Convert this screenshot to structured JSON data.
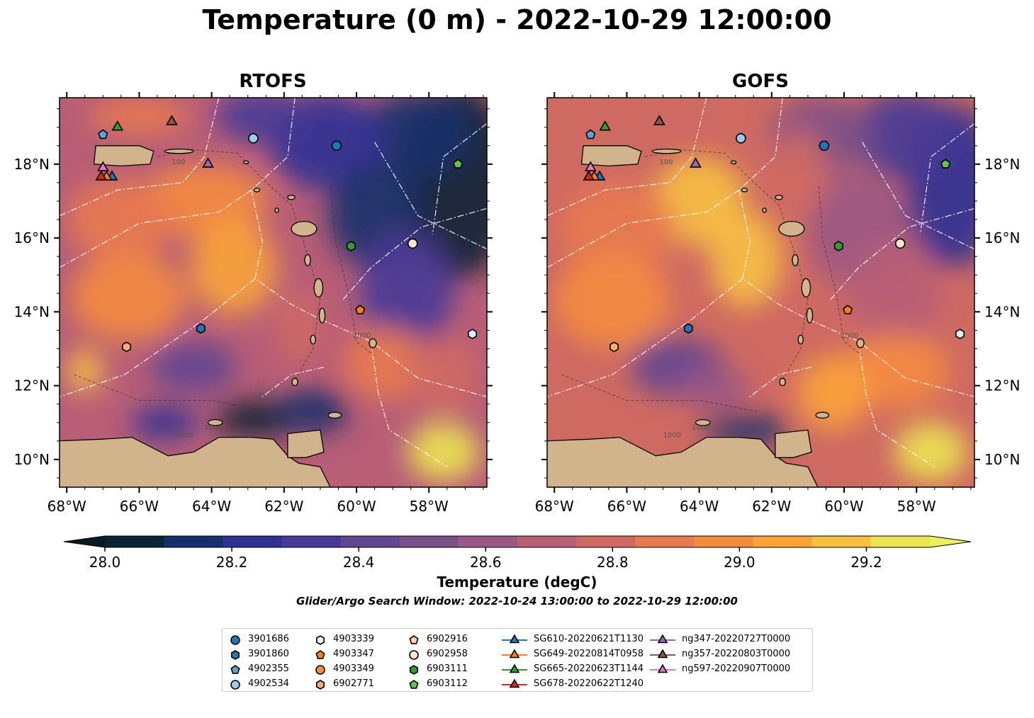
{
  "title": "Temperature (0 m) - 2022-10-29 12:00:00",
  "panels": [
    {
      "title": "RTOFS"
    },
    {
      "title": "GOFS"
    }
  ],
  "map_extent": {
    "lon": [
      -68.2,
      -56.4
    ],
    "lat": [
      9.25,
      19.8
    ]
  },
  "lon_ticks": [
    {
      "value": -68,
      "label": "68°W"
    },
    {
      "value": -66,
      "label": "66°W"
    },
    {
      "value": -64,
      "label": "64°W"
    },
    {
      "value": -62,
      "label": "62°W"
    },
    {
      "value": -60,
      "label": "60°W"
    },
    {
      "value": -58,
      "label": "58°W"
    }
  ],
  "lat_ticks": [
    {
      "value": 10,
      "label": "10°N"
    },
    {
      "value": 12,
      "label": "12°N"
    },
    {
      "value": 14,
      "label": "14°N"
    },
    {
      "value": 16,
      "label": "16°N"
    },
    {
      "value": 18,
      "label": "18°N"
    }
  ],
  "contour_labels": [
    "1000",
    "2000",
    "1000",
    "100"
  ],
  "colorbar": {
    "label": "Temperature (degC)",
    "range": [
      28.0,
      29.3
    ],
    "ticks": [
      {
        "value": 28.0,
        "label": "28.0"
      },
      {
        "value": 28.2,
        "label": "28.2"
      },
      {
        "value": 28.4,
        "label": "28.4"
      },
      {
        "value": 28.6,
        "label": "28.6"
      },
      {
        "value": 28.8,
        "label": "28.8"
      },
      {
        "value": 29.0,
        "label": "29.0"
      },
      {
        "value": 29.2,
        "label": "29.2"
      }
    ],
    "colors": [
      "#0b2433",
      "#15306b",
      "#2e3294",
      "#473a96",
      "#614690",
      "#7a5088",
      "#9a5884",
      "#b85e77",
      "#cf6a62",
      "#e87a4f",
      "#f48c40",
      "#f9a43a",
      "#f7c043",
      "#ebe552"
    ],
    "under_color": "#081a24",
    "over_color": "#eef05a"
  },
  "search_window": "Glider/Argo Search Window: 2022-10-24 13:00:00 to 2022-10-29 12:00:00",
  "land_color": "#d2b48c",
  "legend": [
    {
      "label": "3901686",
      "shape": "circle",
      "color": "#1f77b4"
    },
    {
      "label": "3901860",
      "shape": "hexagon",
      "color": "#1f77b4"
    },
    {
      "label": "4902355",
      "shape": "pentagon",
      "color": "#5aa4d6"
    },
    {
      "label": "4902534",
      "shape": "circle",
      "color": "#9ecae9"
    },
    {
      "label": "4903339",
      "shape": "hexagon",
      "color": "#dbeefb"
    },
    {
      "label": "4903347",
      "shape": "pentagon",
      "color": "#ff7f0e"
    },
    {
      "label": "4903349",
      "shape": "circle",
      "color": "#fd8d3c"
    },
    {
      "label": "6902771",
      "shape": "hexagon",
      "color": "#fdae6b"
    },
    {
      "label": "6902916",
      "shape": "pentagon",
      "color": "#fdd0a2"
    },
    {
      "label": "6902958",
      "shape": "circle",
      "color": "#fee6ce"
    },
    {
      "label": "6903111",
      "shape": "hexagon",
      "color": "#2ca02c"
    },
    {
      "label": "6903112",
      "shape": "pentagon",
      "color": "#5ac84a"
    },
    {
      "label": "SG610-20220621T1130",
      "shape": "triangle",
      "color": "#1f77b4",
      "line": "#1f77b4"
    },
    {
      "label": "SG649-20220814T0958",
      "shape": "triangle",
      "color": "#ff7f0e",
      "line": "#ff7f0e"
    },
    {
      "label": "SG665-20220623T1144",
      "shape": "triangle",
      "color": "#2ca02c",
      "line": "#2ca02c"
    },
    {
      "label": "SG678-20220622T1240",
      "shape": "triangle",
      "color": "#d62728",
      "line": "#d62728"
    },
    {
      "label": "ng347-20220727T0000",
      "shape": "triangle",
      "color": "#9467bd",
      "line": "#9467bd"
    },
    {
      "label": "ng357-20220803T0000",
      "shape": "triangle",
      "color": "#8c564b",
      "line": "#8c564b"
    },
    {
      "label": "ng597-20220907T0000",
      "shape": "triangle",
      "color": "#e377c2",
      "line": "#e377c2"
    }
  ],
  "floats": [
    {
      "id": "3901686",
      "lon": -60.55,
      "lat": 18.5
    },
    {
      "id": "3901860",
      "lon": -64.3,
      "lat": 13.55
    },
    {
      "id": "4902355",
      "lon": -67.0,
      "lat": 18.8
    },
    {
      "id": "4902534",
      "lon": -62.85,
      "lat": 18.7
    },
    {
      "id": "4903339",
      "lon": -56.8,
      "lat": 13.4
    },
    {
      "id": "4903347",
      "lon": -59.9,
      "lat": 14.05
    },
    {
      "id": "6902958",
      "lon": -58.45,
      "lat": 15.85
    },
    {
      "id": "6903111",
      "lon": -60.15,
      "lat": 15.78
    },
    {
      "id": "6903112",
      "lon": -57.2,
      "lat": 18.0
    },
    {
      "id": "6902771",
      "lon": -66.35,
      "lat": 13.05,
      "rtofs_color": "#fd8d3c",
      "gofs_color": "#fd8d3c"
    }
  ],
  "gliders": [
    {
      "id": "SG610-20220621T1130",
      "lon": -66.75,
      "lat": 17.65
    },
    {
      "id": "SG649-20220814T0958",
      "lon": -66.9,
      "lat": 17.65
    },
    {
      "id": "SG665-20220623T1144",
      "lon": -66.6,
      "lat": 19.0
    },
    {
      "id": "SG678-20220622T1240",
      "lon": -67.05,
      "lat": 17.65
    },
    {
      "id": "ng347-20220727T0000",
      "lon": -64.1,
      "lat": 18.0
    },
    {
      "id": "ng357-20220803T0000",
      "lon": -65.1,
      "lat": 19.15
    },
    {
      "id": "ng597-20220907T0000",
      "lon": -67.0,
      "lat": 17.9
    }
  ]
}
